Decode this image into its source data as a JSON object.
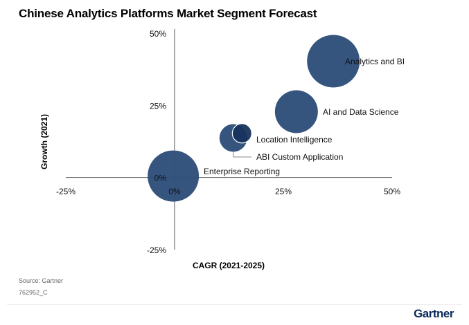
{
  "title": "Chinese Analytics Platforms Market Segment Forecast",
  "source": "Source: Gartner",
  "doc_id": "762952_C",
  "logo": "Gartner",
  "chart_data": {
    "type": "bubble",
    "title": "Chinese Analytics Platforms Market Segment Forecast",
    "xlabel": "CAGR (2021-2025)",
    "ylabel": "Growth (2021)",
    "xlim": [
      -25,
      50
    ],
    "ylim": [
      -25,
      50
    ],
    "xticks": [
      "-25%",
      "0%",
      "25%",
      "50%"
    ],
    "yticks": [
      "50%",
      "25%",
      "0%",
      "-25%"
    ],
    "grid": false,
    "colors": {
      "bubble": "#2f4f7a",
      "highlight": "#17335e",
      "axis": "#555555"
    },
    "points": [
      {
        "label": "Analytics and BI",
        "x": 36.5,
        "y": 40.3,
        "size": 38
      },
      {
        "label": "AI and Data Science",
        "x": 28,
        "y": 22.8,
        "size": 31
      },
      {
        "label": "ABI Custom Application",
        "x": 13.5,
        "y": 13.7,
        "size": 20
      },
      {
        "label": "Location Intelligence",
        "x": 15.5,
        "y": 15.3,
        "size": 14
      },
      {
        "label": "Enterprise Reporting",
        "x": -0.3,
        "y": 0.5,
        "size": 37
      }
    ]
  }
}
